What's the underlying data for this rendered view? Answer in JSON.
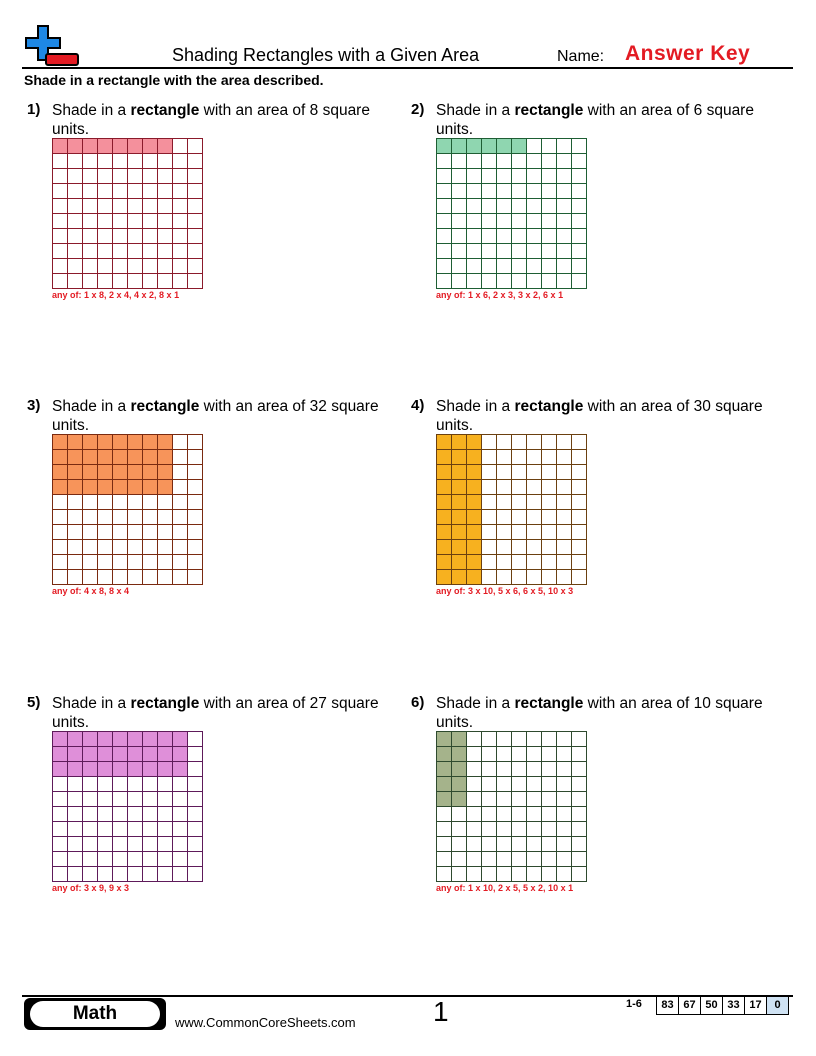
{
  "header": {
    "title": "Shading Rectangles with a Given Area",
    "name_label": "Name:",
    "answer_key": "Answer Key"
  },
  "instructions": "Shade in a rectangle with the area described.",
  "problems": [
    {
      "number": "1)",
      "pre": "Shade in a ",
      "bold": "rectangle",
      "post": " with an area of 8 square units.",
      "rows": 1,
      "cols": 8,
      "color": "#f4909c",
      "border": "#8b1a2b",
      "answer": "any of: 1 x 8, 2 x 4, 4 x 2, 8 x 1"
    },
    {
      "number": "2)",
      "pre": "Shade in a ",
      "bold": "rectangle",
      "post": " with an area of 6 square units.",
      "rows": 1,
      "cols": 6,
      "color": "#8fd6b0",
      "border": "#1e5e34",
      "answer": "any of: 1 x 6, 2 x 3, 3 x 2, 6 x 1"
    },
    {
      "number": "3)",
      "pre": "Shade in a ",
      "bold": "rectangle",
      "post": " with an area of 32 square units.",
      "rows": 4,
      "cols": 8,
      "color": "#f7945a",
      "border": "#7a2a10",
      "answer": "any of: 4 x 8, 8 x 4"
    },
    {
      "number": "4)",
      "pre": "Shade in a ",
      "bold": "rectangle",
      "post": " with an area of 30 square units.",
      "rows": 10,
      "cols": 3,
      "color": "#f7b11f",
      "border": "#6b4010",
      "answer": "any of: 3 x 10, 5 x 6, 6 x 5, 10 x 3"
    },
    {
      "number": "5)",
      "pre": "Shade in a ",
      "bold": "rectangle",
      "post": " with an area of 27 square units.",
      "rows": 3,
      "cols": 9,
      "color": "#df8fd9",
      "border": "#5e1a5a",
      "answer": "any of: 3 x 9, 9 x 3"
    },
    {
      "number": "6)",
      "pre": "Shade in a ",
      "bold": "rectangle",
      "post": " with an area of 10 square units.",
      "rows": 5,
      "cols": 2,
      "color": "#a5b38b",
      "border": "#2e4a2e",
      "answer": "any of: 1 x 10, 2 x 5, 5 x 2, 10 x 1"
    }
  ],
  "footer": {
    "subject": "Math",
    "url": "www.CommonCoreSheets.com",
    "page": "1",
    "grade_range": "1-6",
    "scores": [
      "83",
      "67",
      "50",
      "33",
      "17",
      "0"
    ]
  }
}
